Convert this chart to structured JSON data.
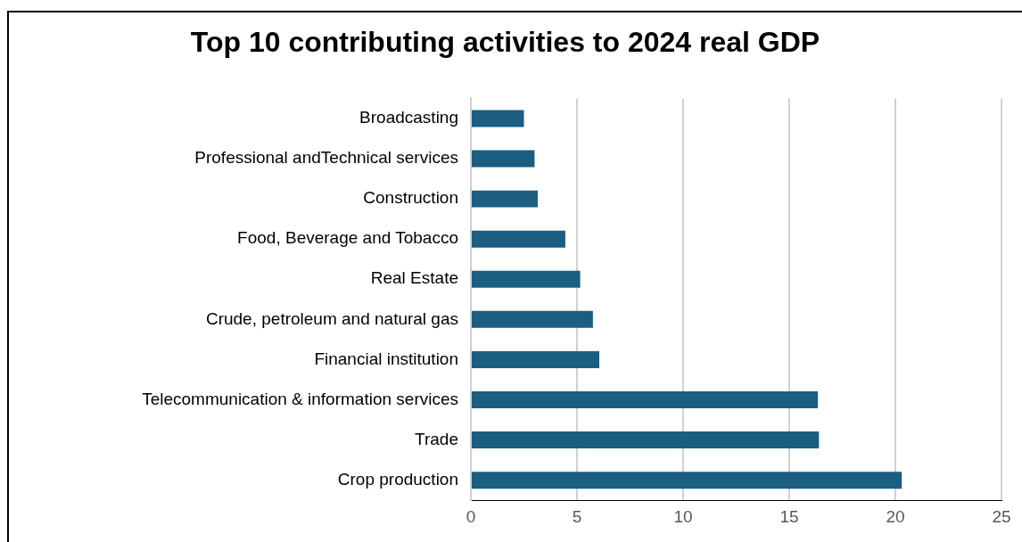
{
  "chart_data": {
    "type": "bar",
    "orientation": "horizontal",
    "title": "Top 10 contributing activities to 2024 real GDP",
    "categories": [
      "Broadcasting",
      "Professional andTechnical services",
      "Construction",
      "Food, Beverage and Tobacco",
      "Real Estate",
      "Crude, petroleum and natural gas",
      "Financial institution",
      "Telecommunication & information services",
      "Trade",
      "Crop production"
    ],
    "values": [
      2.5,
      3.0,
      3.15,
      4.45,
      5.15,
      5.75,
      6.05,
      16.35,
      16.4,
      20.3
    ],
    "color": "#1a5e80",
    "xlim": [
      0,
      25
    ],
    "xticks": [
      0,
      5,
      10,
      15,
      20,
      25
    ],
    "grid": "x"
  }
}
